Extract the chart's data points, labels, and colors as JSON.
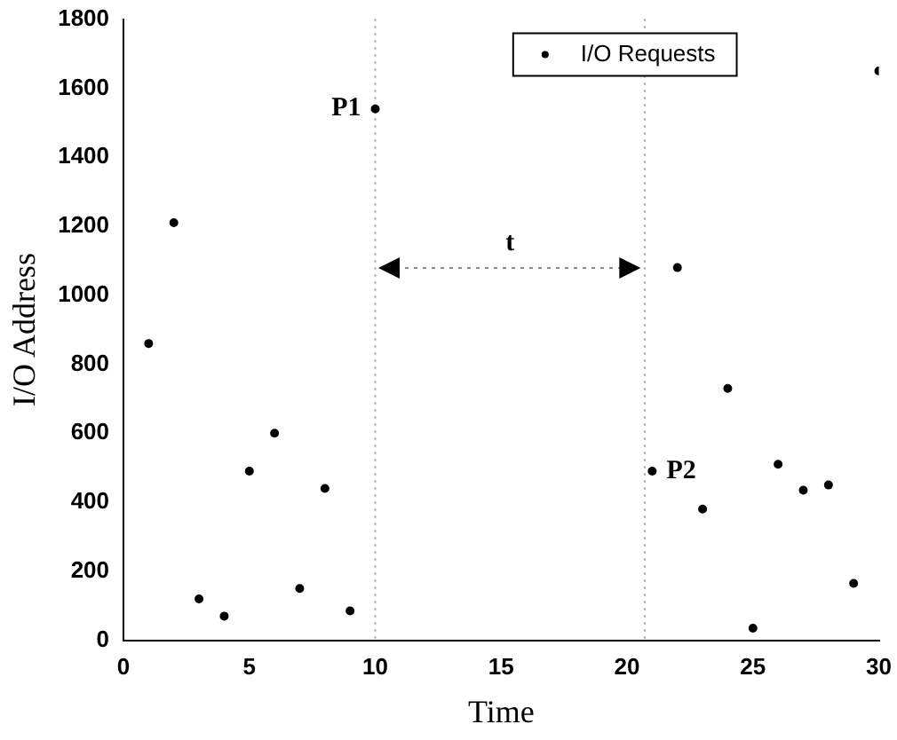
{
  "chart_data": {
    "type": "scatter",
    "xlabel": "Time",
    "ylabel": "I/O Address",
    "series": [
      {
        "name": "I/O Requests",
        "color": "#000000",
        "x": [
          1,
          2,
          3,
          4,
          5,
          6,
          7,
          8,
          9,
          10,
          21,
          22,
          23,
          24,
          25,
          26,
          27,
          28,
          29,
          30
        ],
        "values": [
          860,
          1210,
          120,
          70,
          490,
          600,
          150,
          440,
          85,
          1540,
          490,
          1080,
          380,
          730,
          35,
          510,
          435,
          450,
          165,
          1650
        ]
      }
    ],
    "xlim": [
      0,
      30
    ],
    "xticks": [
      0,
      5,
      10,
      15,
      20,
      25,
      30
    ],
    "ylim": [
      0,
      1800
    ],
    "yticks": [
      0,
      200,
      400,
      600,
      800,
      1000,
      1200,
      1400,
      1600,
      1800
    ],
    "ref_lines": [
      {
        "axis": "x",
        "value": 10,
        "line_style": "dotted",
        "color": "#999999"
      },
      {
        "axis": "x",
        "value": 20.7,
        "line_style": "dotted",
        "color": "#999999"
      }
    ],
    "annotations": [
      {
        "text": "P1",
        "x": 10,
        "y": 1540
      },
      {
        "text": "P2",
        "x": 21,
        "y": 490
      },
      "t"
    ],
    "marker": "circle",
    "legend": "top right",
    "grid": false
  }
}
